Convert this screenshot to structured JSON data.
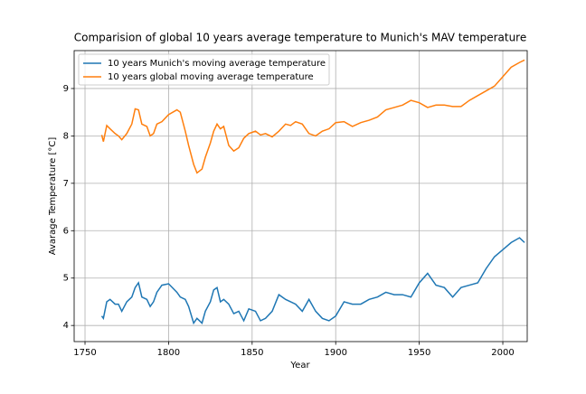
{
  "chart_data": {
    "type": "line",
    "title": "Comparision of global 10 years average temperature to Munich's MAV temperature",
    "x_label": "Year",
    "y_label": "Avarage Temperature [°C]",
    "x": [
      1760,
      1761,
      1763,
      1765,
      1768,
      1770,
      1772,
      1775,
      1778,
      1780,
      1782,
      1784,
      1787,
      1789,
      1791,
      1793,
      1796,
      1800,
      1805,
      1807,
      1810,
      1812,
      1815,
      1817,
      1820,
      1822,
      1825,
      1827,
      1829,
      1831,
      1833,
      1836,
      1839,
      1842,
      1845,
      1848,
      1852,
      1855,
      1858,
      1862,
      1866,
      1870,
      1873,
      1876,
      1880,
      1884,
      1888,
      1892,
      1896,
      1900,
      1905,
      1910,
      1915,
      1920,
      1925,
      1930,
      1935,
      1940,
      1945,
      1950,
      1955,
      1960,
      1965,
      1970,
      1975,
      1980,
      1985,
      1990,
      1995,
      2000,
      2005,
      2010,
      2013
    ],
    "series": [
      {
        "name": "10 years Munich's moving average temperature",
        "color": "#1f77b4",
        "values": [
          4.2,
          4.15,
          4.5,
          4.55,
          4.45,
          4.45,
          4.3,
          4.5,
          4.6,
          4.8,
          4.9,
          4.6,
          4.55,
          4.4,
          4.5,
          4.7,
          4.85,
          4.88,
          4.7,
          4.6,
          4.55,
          4.4,
          4.05,
          4.15,
          4.05,
          4.3,
          4.5,
          4.75,
          4.8,
          4.5,
          4.55,
          4.45,
          4.25,
          4.3,
          4.1,
          4.35,
          4.3,
          4.1,
          4.15,
          4.3,
          4.65,
          4.55,
          4.5,
          4.45,
          4.3,
          4.55,
          4.3,
          4.15,
          4.1,
          4.2,
          4.5,
          4.45,
          4.45,
          4.55,
          4.6,
          4.7,
          4.65,
          4.65,
          4.6,
          4.9,
          5.1,
          4.85,
          4.8,
          4.6,
          4.8,
          4.85,
          4.9,
          5.2,
          5.45,
          5.6,
          5.75,
          5.85,
          5.75
        ]
      },
      {
        "name": "10 years global moving average temperature",
        "color": "#ff7f0e",
        "values": [
          8.02,
          7.88,
          8.22,
          8.15,
          8.05,
          8.0,
          7.92,
          8.05,
          8.25,
          8.57,
          8.55,
          8.25,
          8.2,
          8.0,
          8.05,
          8.25,
          8.3,
          8.45,
          8.55,
          8.5,
          8.1,
          7.8,
          7.4,
          7.22,
          7.3,
          7.55,
          7.85,
          8.1,
          8.25,
          8.15,
          8.2,
          7.8,
          7.68,
          7.75,
          7.95,
          8.05,
          8.1,
          8.02,
          8.05,
          7.98,
          8.1,
          8.25,
          8.22,
          8.3,
          8.25,
          8.05,
          8.0,
          8.1,
          8.15,
          8.28,
          8.3,
          8.2,
          8.28,
          8.33,
          8.4,
          8.55,
          8.6,
          8.65,
          8.75,
          8.7,
          8.6,
          8.65,
          8.65,
          8.62,
          8.62,
          8.75,
          8.85,
          8.95,
          9.05,
          9.25,
          9.45,
          9.55,
          9.6
        ]
      }
    ],
    "xlim": [
      1743.5,
      2014.6
    ],
    "xticks": [
      1750,
      1800,
      1850,
      1900,
      1950,
      2000
    ],
    "ylim": [
      3.66,
      9.8
    ],
    "yticks": [
      4,
      5,
      6,
      7,
      8,
      9
    ],
    "grid": true,
    "legend": "upper left"
  }
}
